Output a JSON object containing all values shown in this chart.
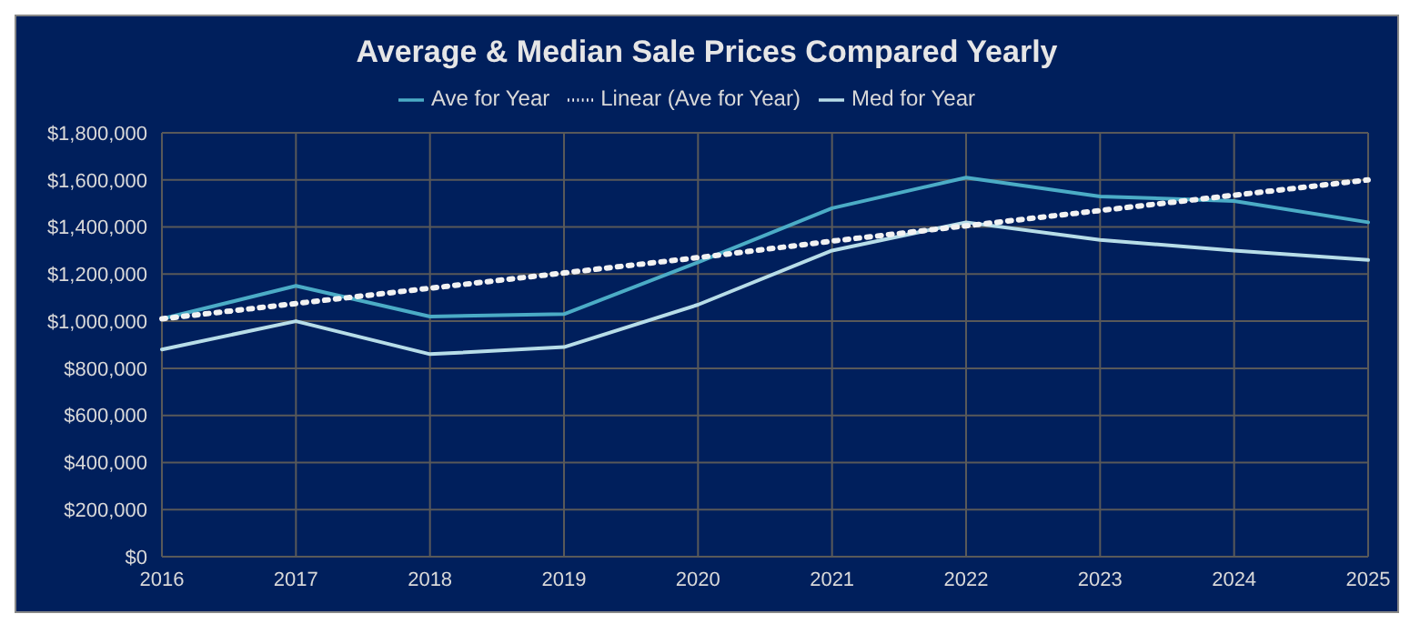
{
  "chart_data": {
    "type": "line",
    "title": "Average & Median Sale Prices Compared Yearly",
    "categories": [
      "2016",
      "2017",
      "2018",
      "2019",
      "2020",
      "2021",
      "2022",
      "2023",
      "2024",
      "2025"
    ],
    "series": [
      {
        "name": "Ave for Year",
        "color": "#4bacc6",
        "values": [
          1010000,
          1150000,
          1020000,
          1030000,
          1250000,
          1480000,
          1610000,
          1530000,
          1510000,
          1420000
        ]
      },
      {
        "name": "Med for Year",
        "color": "#b7dde8",
        "values": [
          880000,
          1000000,
          860000,
          890000,
          1070000,
          1300000,
          1420000,
          1345000,
          1300000,
          1260000
        ]
      },
      {
        "name": "Linear (Ave for Year)",
        "color": "#f2f2f2",
        "line_style": "dotted",
        "values": [
          1010000,
          1075000,
          1140000,
          1205000,
          1270000,
          1340000,
          1405000,
          1470000,
          1535000,
          1600000
        ]
      }
    ],
    "ylim": [
      0,
      1800000
    ],
    "yticks": [
      {
        "value": 0,
        "label": "$0"
      },
      {
        "value": 200000,
        "label": "$200,000"
      },
      {
        "value": 400000,
        "label": "$400,000"
      },
      {
        "value": 600000,
        "label": "$600,000"
      },
      {
        "value": 800000,
        "label": "$800,000"
      },
      {
        "value": 1000000,
        "label": "$1,000,000"
      },
      {
        "value": 1200000,
        "label": "$1,200,000"
      },
      {
        "value": 1400000,
        "label": "$1,400,000"
      },
      {
        "value": 1600000,
        "label": "$1,600,000"
      },
      {
        "value": 1800000,
        "label": "$1,800,000"
      }
    ],
    "grid": true,
    "legend": "top",
    "marker": "none",
    "line_style": "solid"
  }
}
